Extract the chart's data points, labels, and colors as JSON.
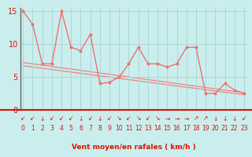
{
  "x": [
    0,
    1,
    2,
    3,
    4,
    5,
    6,
    7,
    8,
    9,
    10,
    11,
    12,
    13,
    14,
    15,
    16,
    17,
    18,
    19,
    20,
    21,
    22,
    23
  ],
  "y_main": [
    15,
    13,
    7,
    7,
    15,
    9.5,
    9,
    11.5,
    4,
    4.2,
    5,
    7,
    9.5,
    7,
    7,
    6.5,
    7,
    9.5,
    9.5,
    2.5,
    2.5,
    4,
    3,
    2.5
  ],
  "trend1_y0": 7.2,
  "trend1_y1": 2.6,
  "trend2_y0": 6.7,
  "trend2_y1": 2.3,
  "bg_color": "#caeeed",
  "grid_color": "#aad8d4",
  "line_color": "#f07070",
  "xlabel": "Vent moyen/en rafales ( km/h )",
  "yticks": [
    0,
    5,
    10,
    15
  ],
  "xlim": [
    -0.3,
    23.3
  ],
  "ylim": [
    0,
    15.5
  ],
  "font_color": "#dd1100",
  "red_line_color": "#dd1100",
  "arrow_chars": [
    "↙",
    "↙",
    "↓",
    "↙",
    "↙",
    "↙",
    "↓",
    "↙",
    "↓",
    "↙",
    "↘",
    "↙",
    "↘",
    "↙",
    "↘",
    "→",
    "→",
    "→",
    "↗",
    "↗",
    "↓",
    "↓",
    "↓",
    "↙"
  ]
}
